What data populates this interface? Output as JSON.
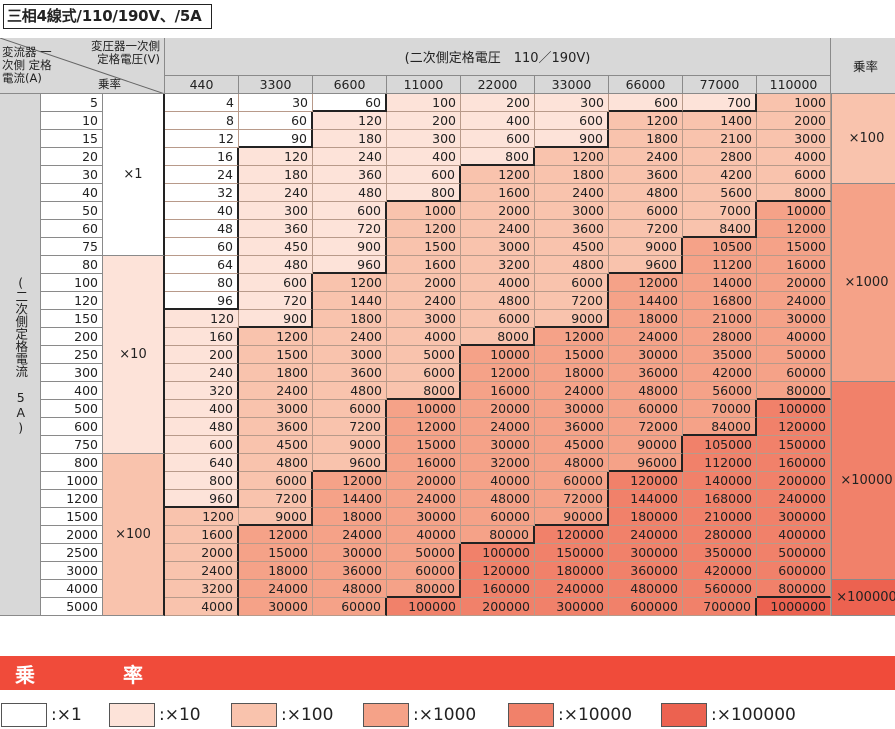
{
  "title": "三相4線式/110/190V、/5A",
  "header": {
    "current_label": "変流器 一次側 定格電流(A)",
    "transformer_label": "変圧器一次側 定格電圧(V)",
    "multiplier_label": "乗率",
    "secondary_voltage": "(二次側定格電圧　110／190V)",
    "right_multiplier_label": "乗率",
    "secondary_current": "(二次側定格電流　5A)"
  },
  "voltages": [
    "440",
    "3300",
    "6600",
    "11000",
    "22000",
    "33000",
    "66000",
    "77000",
    "110000"
  ],
  "currents": [
    "5",
    "10",
    "15",
    "20",
    "30",
    "40",
    "50",
    "60",
    "75",
    "80",
    "100",
    "120",
    "150",
    "200",
    "250",
    "300",
    "400",
    "500",
    "600",
    "750",
    "800",
    "1000",
    "1200",
    "1500",
    "2000",
    "2500",
    "3000",
    "4000",
    "5000"
  ],
  "ct_multipliers": [
    "×1",
    "×10",
    "×100"
  ],
  "right_multipliers": [
    "×100",
    "×1000",
    "×10000",
    "×100000"
  ],
  "values": [
    [
      "4",
      "30",
      "60",
      "100",
      "200",
      "300",
      "600",
      "700",
      "1000"
    ],
    [
      "8",
      "60",
      "120",
      "200",
      "400",
      "600",
      "1200",
      "1400",
      "2000"
    ],
    [
      "12",
      "90",
      "180",
      "300",
      "600",
      "900",
      "1800",
      "2100",
      "3000"
    ],
    [
      "16",
      "120",
      "240",
      "400",
      "800",
      "1200",
      "2400",
      "2800",
      "4000"
    ],
    [
      "24",
      "180",
      "360",
      "600",
      "1200",
      "1800",
      "3600",
      "4200",
      "6000"
    ],
    [
      "32",
      "240",
      "480",
      "800",
      "1600",
      "2400",
      "4800",
      "5600",
      "8000"
    ],
    [
      "40",
      "300",
      "600",
      "1000",
      "2000",
      "3000",
      "6000",
      "7000",
      "10000"
    ],
    [
      "48",
      "360",
      "720",
      "1200",
      "2400",
      "3600",
      "7200",
      "8400",
      "12000"
    ],
    [
      "60",
      "450",
      "900",
      "1500",
      "3000",
      "4500",
      "9000",
      "10500",
      "15000"
    ],
    [
      "64",
      "480",
      "960",
      "1600",
      "3200",
      "4800",
      "9600",
      "11200",
      "16000"
    ],
    [
      "80",
      "600",
      "1200",
      "2000",
      "4000",
      "6000",
      "12000",
      "14000",
      "20000"
    ],
    [
      "96",
      "720",
      "1440",
      "2400",
      "4800",
      "7200",
      "14400",
      "16800",
      "24000"
    ],
    [
      "120",
      "900",
      "1800",
      "3000",
      "6000",
      "9000",
      "18000",
      "21000",
      "30000"
    ],
    [
      "160",
      "1200",
      "2400",
      "4000",
      "8000",
      "12000",
      "24000",
      "28000",
      "40000"
    ],
    [
      "200",
      "1500",
      "3000",
      "5000",
      "10000",
      "15000",
      "30000",
      "35000",
      "50000"
    ],
    [
      "240",
      "1800",
      "3600",
      "6000",
      "12000",
      "18000",
      "36000",
      "42000",
      "60000"
    ],
    [
      "320",
      "2400",
      "4800",
      "8000",
      "16000",
      "24000",
      "48000",
      "56000",
      "80000"
    ],
    [
      "400",
      "3000",
      "6000",
      "10000",
      "20000",
      "30000",
      "60000",
      "70000",
      "100000"
    ],
    [
      "480",
      "3600",
      "7200",
      "12000",
      "24000",
      "36000",
      "72000",
      "84000",
      "120000"
    ],
    [
      "600",
      "4500",
      "9000",
      "15000",
      "30000",
      "45000",
      "90000",
      "105000",
      "150000"
    ],
    [
      "640",
      "4800",
      "9600",
      "16000",
      "32000",
      "48000",
      "96000",
      "112000",
      "160000"
    ],
    [
      "800",
      "6000",
      "12000",
      "20000",
      "40000",
      "60000",
      "120000",
      "140000",
      "200000"
    ],
    [
      "960",
      "7200",
      "14400",
      "24000",
      "48000",
      "72000",
      "144000",
      "168000",
      "240000"
    ],
    [
      "1200",
      "9000",
      "18000",
      "30000",
      "60000",
      "90000",
      "180000",
      "210000",
      "300000"
    ],
    [
      "1600",
      "12000",
      "24000",
      "40000",
      "80000",
      "120000",
      "240000",
      "280000",
      "400000"
    ],
    [
      "2000",
      "15000",
      "30000",
      "50000",
      "100000",
      "150000",
      "300000",
      "350000",
      "500000"
    ],
    [
      "2400",
      "18000",
      "36000",
      "60000",
      "120000",
      "180000",
      "360000",
      "420000",
      "600000"
    ],
    [
      "3200",
      "24000",
      "48000",
      "80000",
      "160000",
      "240000",
      "480000",
      "560000",
      "800000"
    ],
    [
      "4000",
      "30000",
      "60000",
      "100000",
      "200000",
      "300000",
      "600000",
      "700000",
      "1000000"
    ]
  ],
  "colors": {
    "x1": "#ffffff",
    "x10": "#fde3d9",
    "x100": "#f9c3ad",
    "x1000": "#f5a288",
    "x10000": "#f1816a",
    "x100000": "#ec6250",
    "header": "#d8d8d8",
    "banner": "#f04b3a"
  },
  "legend": {
    "title": "乗　率",
    "items": [
      {
        "label": ":×1",
        "color_key": "x1"
      },
      {
        "label": ":×10",
        "color_key": "x10"
      },
      {
        "label": ":×100",
        "color_key": "x100"
      },
      {
        "label": ":×1000",
        "color_key": "x1000"
      },
      {
        "label": ":×10000",
        "color_key": "x10000"
      },
      {
        "label": ":×100000",
        "color_key": "x100000"
      }
    ]
  }
}
